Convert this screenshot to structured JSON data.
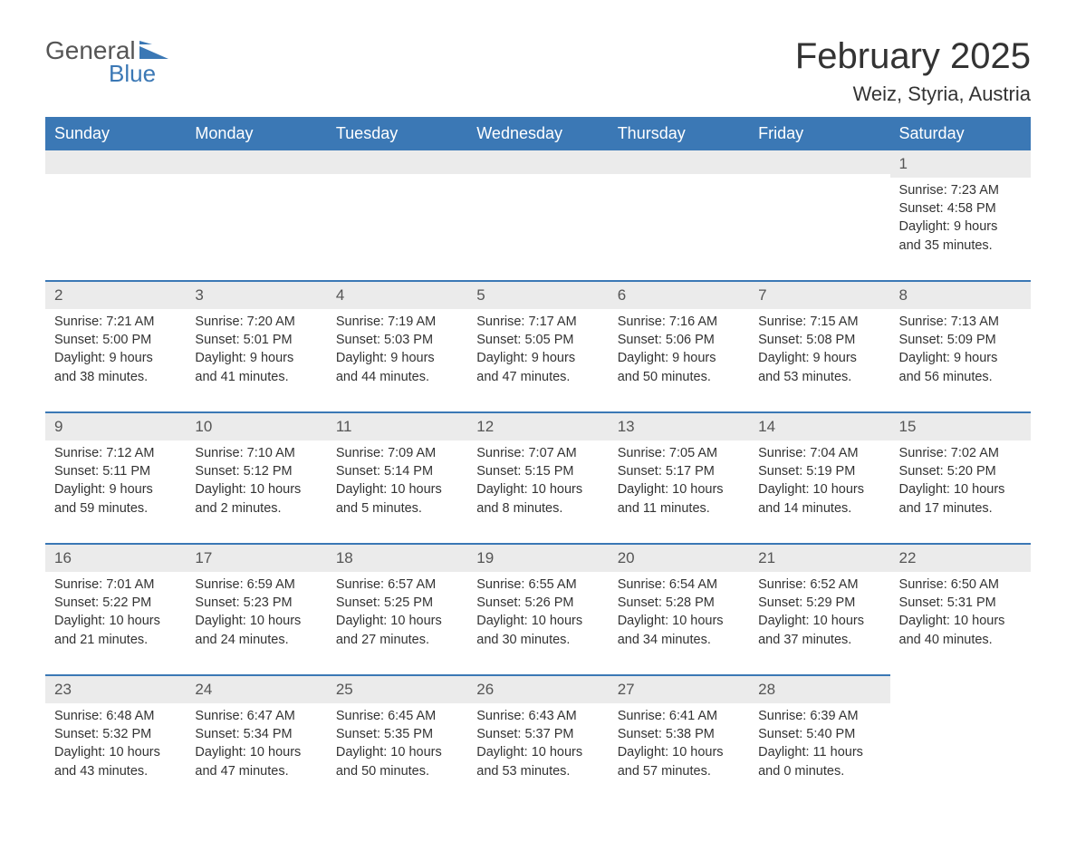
{
  "brand": {
    "general": "General",
    "blue": "Blue"
  },
  "title": "February 2025",
  "location": "Weiz, Styria, Austria",
  "colors": {
    "header_bg": "#3b78b5",
    "header_text": "#ffffff",
    "band_bg": "#ebebeb",
    "text": "#333333",
    "page_bg": "#ffffff",
    "accent": "#3b78b5"
  },
  "typography": {
    "title_fontsize": 40,
    "location_fontsize": 22,
    "dayheader_fontsize": 18,
    "daynum_fontsize": 17,
    "body_fontsize": 14.5
  },
  "day_names": [
    "Sunday",
    "Monday",
    "Tuesday",
    "Wednesday",
    "Thursday",
    "Friday",
    "Saturday"
  ],
  "weeks": [
    [
      null,
      null,
      null,
      null,
      null,
      null,
      {
        "n": "1",
        "sunrise": "Sunrise: 7:23 AM",
        "sunset": "Sunset: 4:58 PM",
        "daylight1": "Daylight: 9 hours",
        "daylight2": "and 35 minutes."
      }
    ],
    [
      {
        "n": "2",
        "sunrise": "Sunrise: 7:21 AM",
        "sunset": "Sunset: 5:00 PM",
        "daylight1": "Daylight: 9 hours",
        "daylight2": "and 38 minutes."
      },
      {
        "n": "3",
        "sunrise": "Sunrise: 7:20 AM",
        "sunset": "Sunset: 5:01 PM",
        "daylight1": "Daylight: 9 hours",
        "daylight2": "and 41 minutes."
      },
      {
        "n": "4",
        "sunrise": "Sunrise: 7:19 AM",
        "sunset": "Sunset: 5:03 PM",
        "daylight1": "Daylight: 9 hours",
        "daylight2": "and 44 minutes."
      },
      {
        "n": "5",
        "sunrise": "Sunrise: 7:17 AM",
        "sunset": "Sunset: 5:05 PM",
        "daylight1": "Daylight: 9 hours",
        "daylight2": "and 47 minutes."
      },
      {
        "n": "6",
        "sunrise": "Sunrise: 7:16 AM",
        "sunset": "Sunset: 5:06 PM",
        "daylight1": "Daylight: 9 hours",
        "daylight2": "and 50 minutes."
      },
      {
        "n": "7",
        "sunrise": "Sunrise: 7:15 AM",
        "sunset": "Sunset: 5:08 PM",
        "daylight1": "Daylight: 9 hours",
        "daylight2": "and 53 minutes."
      },
      {
        "n": "8",
        "sunrise": "Sunrise: 7:13 AM",
        "sunset": "Sunset: 5:09 PM",
        "daylight1": "Daylight: 9 hours",
        "daylight2": "and 56 minutes."
      }
    ],
    [
      {
        "n": "9",
        "sunrise": "Sunrise: 7:12 AM",
        "sunset": "Sunset: 5:11 PM",
        "daylight1": "Daylight: 9 hours",
        "daylight2": "and 59 minutes."
      },
      {
        "n": "10",
        "sunrise": "Sunrise: 7:10 AM",
        "sunset": "Sunset: 5:12 PM",
        "daylight1": "Daylight: 10 hours",
        "daylight2": "and 2 minutes."
      },
      {
        "n": "11",
        "sunrise": "Sunrise: 7:09 AM",
        "sunset": "Sunset: 5:14 PM",
        "daylight1": "Daylight: 10 hours",
        "daylight2": "and 5 minutes."
      },
      {
        "n": "12",
        "sunrise": "Sunrise: 7:07 AM",
        "sunset": "Sunset: 5:15 PM",
        "daylight1": "Daylight: 10 hours",
        "daylight2": "and 8 minutes."
      },
      {
        "n": "13",
        "sunrise": "Sunrise: 7:05 AM",
        "sunset": "Sunset: 5:17 PM",
        "daylight1": "Daylight: 10 hours",
        "daylight2": "and 11 minutes."
      },
      {
        "n": "14",
        "sunrise": "Sunrise: 7:04 AM",
        "sunset": "Sunset: 5:19 PM",
        "daylight1": "Daylight: 10 hours",
        "daylight2": "and 14 minutes."
      },
      {
        "n": "15",
        "sunrise": "Sunrise: 7:02 AM",
        "sunset": "Sunset: 5:20 PM",
        "daylight1": "Daylight: 10 hours",
        "daylight2": "and 17 minutes."
      }
    ],
    [
      {
        "n": "16",
        "sunrise": "Sunrise: 7:01 AM",
        "sunset": "Sunset: 5:22 PM",
        "daylight1": "Daylight: 10 hours",
        "daylight2": "and 21 minutes."
      },
      {
        "n": "17",
        "sunrise": "Sunrise: 6:59 AM",
        "sunset": "Sunset: 5:23 PM",
        "daylight1": "Daylight: 10 hours",
        "daylight2": "and 24 minutes."
      },
      {
        "n": "18",
        "sunrise": "Sunrise: 6:57 AM",
        "sunset": "Sunset: 5:25 PM",
        "daylight1": "Daylight: 10 hours",
        "daylight2": "and 27 minutes."
      },
      {
        "n": "19",
        "sunrise": "Sunrise: 6:55 AM",
        "sunset": "Sunset: 5:26 PM",
        "daylight1": "Daylight: 10 hours",
        "daylight2": "and 30 minutes."
      },
      {
        "n": "20",
        "sunrise": "Sunrise: 6:54 AM",
        "sunset": "Sunset: 5:28 PM",
        "daylight1": "Daylight: 10 hours",
        "daylight2": "and 34 minutes."
      },
      {
        "n": "21",
        "sunrise": "Sunrise: 6:52 AM",
        "sunset": "Sunset: 5:29 PM",
        "daylight1": "Daylight: 10 hours",
        "daylight2": "and 37 minutes."
      },
      {
        "n": "22",
        "sunrise": "Sunrise: 6:50 AM",
        "sunset": "Sunset: 5:31 PM",
        "daylight1": "Daylight: 10 hours",
        "daylight2": "and 40 minutes."
      }
    ],
    [
      {
        "n": "23",
        "sunrise": "Sunrise: 6:48 AM",
        "sunset": "Sunset: 5:32 PM",
        "daylight1": "Daylight: 10 hours",
        "daylight2": "and 43 minutes."
      },
      {
        "n": "24",
        "sunrise": "Sunrise: 6:47 AM",
        "sunset": "Sunset: 5:34 PM",
        "daylight1": "Daylight: 10 hours",
        "daylight2": "and 47 minutes."
      },
      {
        "n": "25",
        "sunrise": "Sunrise: 6:45 AM",
        "sunset": "Sunset: 5:35 PM",
        "daylight1": "Daylight: 10 hours",
        "daylight2": "and 50 minutes."
      },
      {
        "n": "26",
        "sunrise": "Sunrise: 6:43 AM",
        "sunset": "Sunset: 5:37 PM",
        "daylight1": "Daylight: 10 hours",
        "daylight2": "and 53 minutes."
      },
      {
        "n": "27",
        "sunrise": "Sunrise: 6:41 AM",
        "sunset": "Sunset: 5:38 PM",
        "daylight1": "Daylight: 10 hours",
        "daylight2": "and 57 minutes."
      },
      {
        "n": "28",
        "sunrise": "Sunrise: 6:39 AM",
        "sunset": "Sunset: 5:40 PM",
        "daylight1": "Daylight: 11 hours",
        "daylight2": "and 0 minutes."
      },
      null
    ]
  ]
}
